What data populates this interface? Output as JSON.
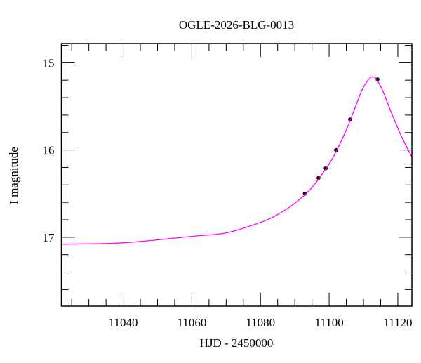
{
  "chart_data": {
    "type": "scatter",
    "title": "OGLE-2026-BLG-0013",
    "xlabel": "HJD - 2450000",
    "ylabel": "I magnitude",
    "xlim": [
      11022,
      11124.1
    ],
    "ylim": [
      17.79,
      14.78
    ],
    "y_inverted": true,
    "x_major_ticks": [
      11040,
      11060,
      11080,
      11100,
      11120
    ],
    "x_minor_step": 5,
    "y_major_ticks": [
      15,
      16,
      17
    ],
    "y_minor_step": 0.2,
    "grid": false,
    "series": [
      {
        "kind": "points",
        "color": "#000000",
        "x": [
          11092.9,
          11096.9,
          11099.0,
          11102.0,
          11106.1,
          11114.1
        ],
        "y": [
          16.5,
          16.32,
          16.21,
          16.0,
          15.65,
          15.19
        ]
      },
      {
        "kind": "line",
        "color": "#ff00ff",
        "x": [
          11022,
          11040,
          11060,
          11070,
          11080,
          11085,
          11090,
          11095,
          11100,
          11102,
          11105,
          11108,
          11110,
          11112.6,
          11115,
          11118,
          11121,
          11124.1
        ],
        "y": [
          17.08,
          17.064,
          16.99,
          16.95,
          16.83,
          16.74,
          16.61,
          16.43,
          16.16,
          16.02,
          15.77,
          15.47,
          15.28,
          15.16,
          15.27,
          15.56,
          15.84,
          16.08
        ]
      }
    ]
  }
}
